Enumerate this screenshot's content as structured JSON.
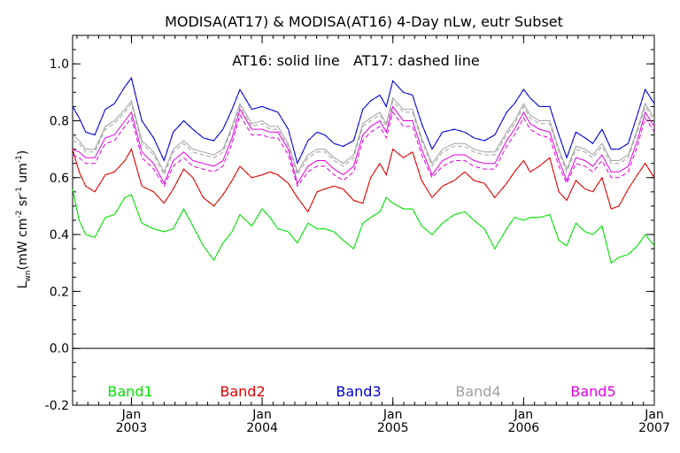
{
  "chart_data": {
    "type": "line",
    "title": "MODISA(AT17) & MODISA(AT16) 4-Day nLw, eutr Subset",
    "annotation": "AT16: solid line   AT17: dashed line",
    "ylabel": "L_wn (mW cm^-2 sr^-1 um^-1)",
    "ylabel_parts": {
      "main": "L",
      "main_sub": "wn",
      "unit_open": "(mW cm",
      "sup1": "-2",
      "mid1": " sr",
      "sup2": "-1",
      "mid2": " um",
      "sup3": "-1",
      "unit_close": ")"
    },
    "xlim": [
      2002.55,
      2007.0
    ],
    "ylim": [
      -0.2,
      1.1
    ],
    "yticks": [
      {
        "value": -0.2,
        "label": "-0.2"
      },
      {
        "value": 0.0,
        "label": "0.0"
      },
      {
        "value": 0.2,
        "label": "0.2"
      },
      {
        "value": 0.4,
        "label": "0.4"
      },
      {
        "value": 0.6,
        "label": "0.6"
      },
      {
        "value": 0.8,
        "label": "0.8"
      },
      {
        "value": 1.0,
        "label": "1.0"
      }
    ],
    "xticks": [
      {
        "value": 2003.0,
        "month": "Jan",
        "year": "2003"
      },
      {
        "value": 2004.0,
        "month": "Jan",
        "year": "2004"
      },
      {
        "value": 2005.0,
        "month": "Jan",
        "year": "2005"
      },
      {
        "value": 2006.0,
        "month": "Jan",
        "year": "2006"
      },
      {
        "value": 2007.0,
        "month": "Jan",
        "year": "2007"
      }
    ],
    "zero_line": 0.0,
    "x": [
      2002.55,
      2002.6,
      2002.65,
      2002.72,
      2002.8,
      2002.87,
      2002.95,
      2003.0,
      2003.08,
      2003.17,
      2003.25,
      2003.32,
      2003.4,
      2003.47,
      2003.55,
      2003.63,
      2003.7,
      2003.77,
      2003.83,
      2003.92,
      2004.0,
      2004.06,
      2004.12,
      2004.2,
      2004.27,
      2004.35,
      2004.42,
      2004.48,
      2004.55,
      2004.62,
      2004.7,
      2004.77,
      2004.83,
      2004.9,
      2004.95,
      2005.0,
      2005.08,
      2005.15,
      2005.22,
      2005.3,
      2005.38,
      2005.47,
      2005.55,
      2005.62,
      2005.7,
      2005.78,
      2005.87,
      2005.93,
      2006.0,
      2006.05,
      2006.12,
      2006.2,
      2006.27,
      2006.33,
      2006.4,
      2006.47,
      2006.53,
      2006.6,
      2006.67,
      2006.73,
      2006.8,
      2006.87,
      2006.93,
      2007.0
    ],
    "series": [
      {
        "name": "Band1",
        "color": "#00e000",
        "solid": [
          0.56,
          0.45,
          0.4,
          0.39,
          0.46,
          0.47,
          0.53,
          0.54,
          0.44,
          0.42,
          0.41,
          0.42,
          0.49,
          0.43,
          0.36,
          0.31,
          0.37,
          0.41,
          0.47,
          0.43,
          0.49,
          0.46,
          0.42,
          0.41,
          0.37,
          0.44,
          0.42,
          0.42,
          0.41,
          0.38,
          0.35,
          0.44,
          0.46,
          0.48,
          0.53,
          0.51,
          0.49,
          0.49,
          0.43,
          0.4,
          0.44,
          0.47,
          0.48,
          0.45,
          0.42,
          0.35,
          0.42,
          0.46,
          0.45,
          0.46,
          0.46,
          0.47,
          0.38,
          0.36,
          0.44,
          0.41,
          0.4,
          0.43,
          0.3,
          0.32,
          0.33,
          0.36,
          0.4,
          0.36
        ],
        "dashed": [
          0.56,
          0.45,
          0.4,
          0.39,
          0.46,
          0.47,
          0.53,
          0.54,
          0.44,
          0.42,
          0.41,
          0.42,
          0.49,
          0.43,
          0.36,
          0.31,
          0.37,
          0.41,
          0.47,
          0.43,
          0.49,
          0.46,
          0.42,
          0.41,
          0.37,
          0.44,
          0.42,
          0.42,
          0.41,
          0.38,
          0.35,
          0.44,
          0.46,
          0.48,
          0.53,
          0.51,
          0.49,
          0.49,
          0.43,
          0.4,
          0.44,
          0.47,
          0.48,
          0.45,
          0.42,
          0.35,
          0.42,
          0.46,
          0.45,
          0.46,
          0.46,
          0.47,
          0.38,
          0.36,
          0.44,
          0.41,
          0.4,
          0.43,
          0.3,
          0.32,
          0.33,
          0.36,
          0.4,
          0.36
        ]
      },
      {
        "name": "Band2",
        "color": "#e00000",
        "solid": [
          0.7,
          0.62,
          0.57,
          0.55,
          0.61,
          0.62,
          0.66,
          0.7,
          0.57,
          0.55,
          0.51,
          0.56,
          0.63,
          0.6,
          0.53,
          0.5,
          0.54,
          0.59,
          0.64,
          0.6,
          0.61,
          0.62,
          0.61,
          0.58,
          0.53,
          0.48,
          0.55,
          0.56,
          0.57,
          0.56,
          0.52,
          0.51,
          0.6,
          0.65,
          0.61,
          0.7,
          0.67,
          0.69,
          0.59,
          0.53,
          0.57,
          0.59,
          0.62,
          0.59,
          0.58,
          0.53,
          0.58,
          0.62,
          0.66,
          0.62,
          0.64,
          0.67,
          0.55,
          0.52,
          0.59,
          0.56,
          0.55,
          0.6,
          0.49,
          0.5,
          0.56,
          0.61,
          0.65,
          0.6
        ],
        "dashed": [
          0.7,
          0.62,
          0.57,
          0.55,
          0.61,
          0.62,
          0.66,
          0.7,
          0.57,
          0.55,
          0.51,
          0.56,
          0.63,
          0.6,
          0.53,
          0.5,
          0.54,
          0.59,
          0.64,
          0.6,
          0.61,
          0.62,
          0.61,
          0.58,
          0.53,
          0.48,
          0.55,
          0.56,
          0.57,
          0.56,
          0.52,
          0.51,
          0.6,
          0.65,
          0.61,
          0.7,
          0.67,
          0.69,
          0.59,
          0.53,
          0.57,
          0.59,
          0.62,
          0.59,
          0.58,
          0.53,
          0.58,
          0.62,
          0.66,
          0.62,
          0.64,
          0.67,
          0.55,
          0.52,
          0.59,
          0.56,
          0.55,
          0.6,
          0.49,
          0.5,
          0.56,
          0.61,
          0.65,
          0.6
        ]
      },
      {
        "name": "Band3",
        "color": "#0000d0",
        "solid": [
          0.85,
          0.81,
          0.76,
          0.75,
          0.84,
          0.86,
          0.92,
          0.95,
          0.8,
          0.74,
          0.66,
          0.76,
          0.8,
          0.77,
          0.74,
          0.73,
          0.77,
          0.84,
          0.91,
          0.84,
          0.85,
          0.84,
          0.83,
          0.77,
          0.65,
          0.73,
          0.76,
          0.75,
          0.72,
          0.71,
          0.73,
          0.84,
          0.87,
          0.89,
          0.85,
          0.94,
          0.9,
          0.89,
          0.79,
          0.7,
          0.76,
          0.77,
          0.76,
          0.74,
          0.73,
          0.75,
          0.83,
          0.86,
          0.91,
          0.88,
          0.85,
          0.85,
          0.75,
          0.67,
          0.76,
          0.74,
          0.72,
          0.77,
          0.7,
          0.7,
          0.72,
          0.82,
          0.91,
          0.86
        ],
        "dashed": [
          0.85,
          0.81,
          0.76,
          0.75,
          0.84,
          0.86,
          0.92,
          0.95,
          0.8,
          0.74,
          0.66,
          0.76,
          0.8,
          0.77,
          0.74,
          0.73,
          0.77,
          0.84,
          0.91,
          0.84,
          0.85,
          0.84,
          0.83,
          0.77,
          0.65,
          0.73,
          0.76,
          0.75,
          0.72,
          0.71,
          0.73,
          0.84,
          0.87,
          0.89,
          0.85,
          0.94,
          0.9,
          0.89,
          0.79,
          0.7,
          0.76,
          0.77,
          0.76,
          0.74,
          0.73,
          0.75,
          0.83,
          0.86,
          0.91,
          0.88,
          0.85,
          0.85,
          0.75,
          0.67,
          0.76,
          0.74,
          0.72,
          0.77,
          0.7,
          0.7,
          0.72,
          0.82,
          0.91,
          0.86
        ]
      },
      {
        "name": "Band4",
        "color": "#a0a0a0",
        "solid": [
          0.75,
          0.73,
          0.7,
          0.7,
          0.78,
          0.8,
          0.84,
          0.87,
          0.73,
          0.69,
          0.62,
          0.7,
          0.73,
          0.7,
          0.69,
          0.68,
          0.7,
          0.78,
          0.86,
          0.79,
          0.8,
          0.78,
          0.78,
          0.72,
          0.62,
          0.68,
          0.7,
          0.7,
          0.67,
          0.65,
          0.68,
          0.79,
          0.81,
          0.83,
          0.79,
          0.88,
          0.84,
          0.84,
          0.74,
          0.65,
          0.7,
          0.72,
          0.72,
          0.7,
          0.69,
          0.69,
          0.76,
          0.8,
          0.86,
          0.82,
          0.8,
          0.8,
          0.7,
          0.63,
          0.71,
          0.7,
          0.68,
          0.72,
          0.66,
          0.66,
          0.68,
          0.77,
          0.86,
          0.81
        ],
        "dashed": [
          0.73,
          0.72,
          0.69,
          0.69,
          0.77,
          0.79,
          0.83,
          0.86,
          0.72,
          0.68,
          0.61,
          0.69,
          0.72,
          0.69,
          0.68,
          0.67,
          0.69,
          0.77,
          0.85,
          0.78,
          0.79,
          0.77,
          0.77,
          0.71,
          0.61,
          0.67,
          0.69,
          0.69,
          0.66,
          0.64,
          0.67,
          0.78,
          0.8,
          0.82,
          0.78,
          0.87,
          0.83,
          0.83,
          0.73,
          0.64,
          0.69,
          0.71,
          0.71,
          0.69,
          0.68,
          0.68,
          0.75,
          0.79,
          0.85,
          0.81,
          0.79,
          0.79,
          0.69,
          0.62,
          0.7,
          0.69,
          0.67,
          0.71,
          0.65,
          0.65,
          0.67,
          0.76,
          0.85,
          0.8
        ]
      },
      {
        "name": "Band5",
        "color": "#e000e0",
        "solid": [
          0.7,
          0.69,
          0.67,
          0.67,
          0.74,
          0.75,
          0.8,
          0.83,
          0.69,
          0.65,
          0.58,
          0.66,
          0.69,
          0.66,
          0.65,
          0.64,
          0.66,
          0.74,
          0.84,
          0.77,
          0.77,
          0.76,
          0.76,
          0.7,
          0.58,
          0.64,
          0.66,
          0.66,
          0.63,
          0.61,
          0.64,
          0.75,
          0.78,
          0.8,
          0.76,
          0.85,
          0.8,
          0.8,
          0.7,
          0.61,
          0.66,
          0.68,
          0.68,
          0.66,
          0.65,
          0.65,
          0.73,
          0.77,
          0.83,
          0.79,
          0.77,
          0.76,
          0.66,
          0.59,
          0.67,
          0.66,
          0.64,
          0.68,
          0.62,
          0.62,
          0.64,
          0.73,
          0.83,
          0.78
        ],
        "dashed": [
          0.68,
          0.67,
          0.65,
          0.65,
          0.72,
          0.73,
          0.78,
          0.81,
          0.67,
          0.63,
          0.57,
          0.64,
          0.67,
          0.64,
          0.63,
          0.62,
          0.64,
          0.72,
          0.82,
          0.75,
          0.75,
          0.74,
          0.74,
          0.68,
          0.57,
          0.62,
          0.64,
          0.64,
          0.61,
          0.59,
          0.62,
          0.73,
          0.76,
          0.78,
          0.74,
          0.83,
          0.78,
          0.78,
          0.68,
          0.6,
          0.64,
          0.66,
          0.66,
          0.64,
          0.63,
          0.63,
          0.71,
          0.75,
          0.81,
          0.77,
          0.75,
          0.74,
          0.64,
          0.58,
          0.65,
          0.64,
          0.62,
          0.66,
          0.6,
          0.6,
          0.62,
          0.71,
          0.81,
          0.76
        ]
      }
    ]
  }
}
